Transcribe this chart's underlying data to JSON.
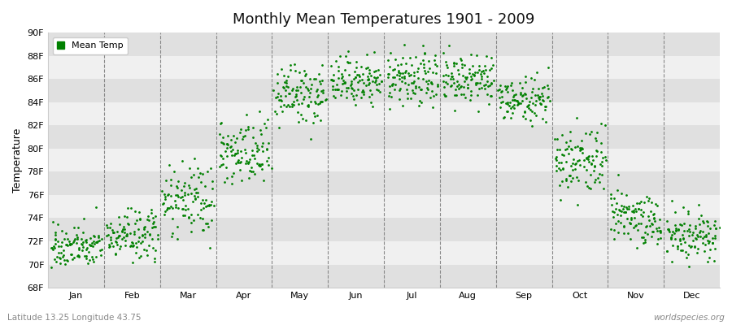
{
  "title": "Monthly Mean Temperatures 1901 - 2009",
  "ylabel": "Temperature",
  "ylim": [
    68,
    90
  ],
  "yticks": [
    68,
    70,
    72,
    74,
    76,
    78,
    80,
    82,
    84,
    86,
    88,
    90
  ],
  "ytick_labels": [
    "68F",
    "70F",
    "72F",
    "74F",
    "76F",
    "78F",
    "80F",
    "82F",
    "84F",
    "86F",
    "88F",
    "90F"
  ],
  "months": [
    "Jan",
    "Feb",
    "Mar",
    "Apr",
    "May",
    "Jun",
    "Jul",
    "Aug",
    "Sep",
    "Oct",
    "Nov",
    "Dec"
  ],
  "dot_color": "#008000",
  "background_color": "#ffffff",
  "plot_bg_light": "#f0f0f0",
  "plot_bg_dark": "#e0e0e0",
  "footer_left": "Latitude 13.25 Longitude 43.75",
  "footer_right": "worldspecies.org",
  "legend_label": "Mean Temp",
  "n_years": 109,
  "monthly_means": [
    71.5,
    72.5,
    75.5,
    79.5,
    84.5,
    85.8,
    85.8,
    85.8,
    84.2,
    79.0,
    74.0,
    72.5
  ],
  "monthly_stds": [
    0.9,
    1.1,
    1.5,
    1.5,
    1.3,
    1.0,
    1.2,
    1.2,
    0.9,
    1.5,
    1.2,
    1.0
  ]
}
